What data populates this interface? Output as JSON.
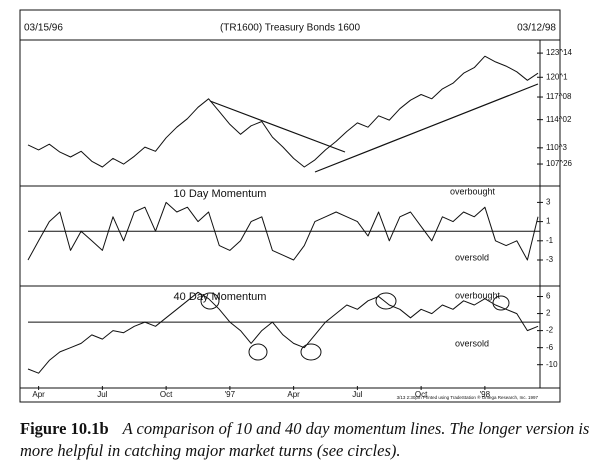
{
  "header": {
    "start_date": "03/15/96",
    "title": "(TR1600) Treasury Bonds 1600",
    "end_date": "03/12/98"
  },
  "chart_data": [
    {
      "type": "line",
      "name": "price",
      "color": "#111",
      "x": [
        0,
        0.5,
        1,
        1.5,
        2,
        2.5,
        3,
        3.5,
        4,
        4.5,
        5,
        5.5,
        6,
        6.5,
        7,
        7.5,
        8,
        8.5,
        9,
        9.5,
        10,
        10.5,
        11,
        11.5,
        12,
        12.5,
        13,
        13.5,
        14,
        14.5,
        15,
        15.5,
        16,
        16.5,
        17,
        17.5,
        18,
        18.5,
        19,
        19.5,
        20,
        20.5,
        21,
        21.5,
        22,
        22.5,
        23,
        23.5,
        24
      ],
      "values": [
        110.5,
        109.8,
        110.6,
        109.5,
        108.8,
        109.6,
        108.2,
        107.4,
        108.6,
        107.8,
        108.9,
        110.2,
        109.6,
        111.5,
        113.0,
        114.2,
        115.8,
        117.0,
        115.2,
        113.4,
        112.0,
        113.2,
        113.8,
        111.6,
        110.2,
        108.6,
        107.4,
        108.4,
        109.8,
        111.0,
        112.4,
        113.6,
        113.0,
        114.6,
        114.0,
        115.6,
        116.8,
        117.6,
        117.0,
        118.4,
        119.2,
        120.6,
        121.4,
        123.0,
        122.2,
        121.6,
        120.8,
        119.6,
        120.6
      ],
      "xlim": [
        0,
        24
      ],
      "ylim": [
        105,
        125
      ],
      "yticks": [
        {
          "value": 123.4375,
          "label": "123^14"
        },
        {
          "value": 120.03125,
          "label": "120^1"
        },
        {
          "value": 117.25,
          "label": "117^08"
        },
        {
          "value": 114.0625,
          "label": "114^02"
        },
        {
          "value": 110.09375,
          "label": "110^3"
        },
        {
          "value": 107.8125,
          "label": "107^26"
        }
      ]
    },
    {
      "type": "line",
      "title": "10 Day Momentum",
      "color": "#111",
      "zero_line": true,
      "annotations": [
        "overbought",
        "oversold"
      ],
      "x": [
        0,
        0.5,
        1,
        1.5,
        2,
        2.5,
        3,
        3.5,
        4,
        4.5,
        5,
        5.5,
        6,
        6.5,
        7,
        7.5,
        8,
        8.5,
        9,
        9.5,
        10,
        10.5,
        11,
        11.5,
        12,
        12.5,
        13,
        13.5,
        14,
        14.5,
        15,
        15.5,
        16,
        16.5,
        17,
        17.5,
        18,
        18.5,
        19,
        19.5,
        20,
        20.5,
        21,
        21.5,
        22,
        22.5,
        23,
        23.5,
        24
      ],
      "values": [
        -3,
        -1,
        1,
        2,
        -2,
        0,
        -1,
        -2,
        1.5,
        -1,
        2,
        2.5,
        0,
        3,
        2,
        2.5,
        1,
        2,
        -1.5,
        -2,
        -1,
        1,
        1.5,
        -2,
        -2.5,
        -3,
        -1.5,
        1,
        1.5,
        2,
        1.5,
        1,
        -0.5,
        2,
        -1,
        1.5,
        2,
        0.5,
        -1,
        1.5,
        1,
        2,
        1.5,
        2.5,
        -1,
        -1.5,
        -1,
        -3,
        1.5
      ],
      "xlim": [
        0,
        24
      ],
      "ylim": [
        -5.5,
        4.5
      ],
      "yticks": [
        3,
        1,
        -1,
        -3
      ]
    },
    {
      "type": "line",
      "title": "40 Day Momentum",
      "color": "#111",
      "zero_line": true,
      "annotations": [
        "overbought",
        "oversold"
      ],
      "x": [
        0,
        0.5,
        1,
        1.5,
        2,
        2.5,
        3,
        3.5,
        4,
        4.5,
        5,
        5.5,
        6,
        6.5,
        7,
        7.5,
        8,
        8.5,
        9,
        9.5,
        10,
        10.5,
        11,
        11.5,
        12,
        12.5,
        13,
        13.5,
        14,
        14.5,
        15,
        15.5,
        16,
        16.5,
        17,
        17.5,
        18,
        18.5,
        19,
        19.5,
        20,
        20.5,
        21,
        21.5,
        22,
        22.5,
        23,
        23.5,
        24
      ],
      "values": [
        -11,
        -12,
        -9,
        -7,
        -6,
        -5,
        -3,
        -4,
        -2,
        -2.5,
        -1,
        0,
        -1,
        1,
        3,
        5,
        7,
        5.5,
        3,
        0,
        -2,
        -5,
        -2,
        0,
        -3,
        -5,
        -6,
        -3,
        0,
        2,
        4,
        3,
        5,
        6,
        4,
        3,
        1,
        3,
        2,
        4,
        3,
        5,
        4,
        5.5,
        4,
        3,
        2,
        -2,
        -1
      ],
      "xlim": [
        0,
        24
      ],
      "ylim": [
        -15,
        8
      ],
      "yticks": [
        6,
        2,
        -2,
        -6,
        -10
      ],
      "xticks": [
        {
          "value": 0.5,
          "label": "Apr"
        },
        {
          "value": 3.5,
          "label": "Jul"
        },
        {
          "value": 6.5,
          "label": "Oct"
        },
        {
          "value": 9.5,
          "label": "'97"
        },
        {
          "value": 12.5,
          "label": "Apr"
        },
        {
          "value": 15.5,
          "label": "Jul"
        },
        {
          "value": 18.5,
          "label": "Oct"
        },
        {
          "value": 21.5,
          "label": "'98"
        }
      ]
    }
  ],
  "footer_note": "3/13  2:30pm  Printed using TradeStation ® Omega Research, Inc. 1997",
  "caption": {
    "label": "Figure 10.1b",
    "text": "A comparison of 10 and 40 day momentum lines. The longer version is more helpful in catching major market turns (see circles)."
  }
}
